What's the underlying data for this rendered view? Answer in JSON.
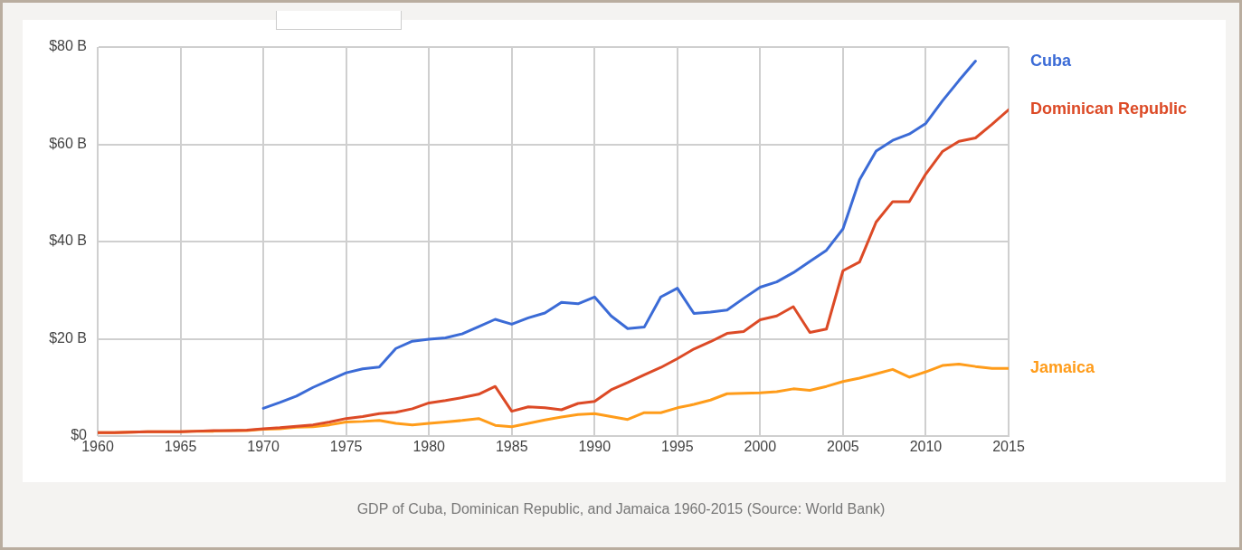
{
  "chart_data": {
    "type": "line",
    "annotations": [
      "GDP of Cuba, Dominican Republic, and Jamaica 1960-2015 (Source: World Bank)"
    ],
    "series": [
      {
        "name": "Cuba",
        "color": "#3b6bd6",
        "x": [
          1970,
          1971,
          1972,
          1973,
          1974,
          1975,
          1976,
          1977,
          1978,
          1979,
          1980,
          1981,
          1982,
          1983,
          1984,
          1985,
          1986,
          1987,
          1988,
          1989,
          1990,
          1991,
          1992,
          1993,
          1994,
          1995,
          1996,
          1997,
          1998,
          1999,
          2000,
          2001,
          2002,
          2003,
          2004,
          2005,
          2006,
          2007,
          2008,
          2009,
          2010,
          2011,
          2012,
          2013
        ],
        "values": [
          5.7,
          6.9,
          8.2,
          10,
          11.5,
          13,
          13.8,
          14.2,
          18,
          19.5,
          19.9,
          20.2,
          21,
          22.5,
          24,
          23,
          24.3,
          25.3,
          27.5,
          27.2,
          28.6,
          24.7,
          22.1,
          22.4,
          28.6,
          30.4,
          25.2,
          25.5,
          25.9,
          28.3,
          30.6,
          31.7,
          33.6,
          35.9,
          38.2,
          42.6,
          52.7,
          58.6,
          60.8,
          62.1,
          64.3,
          68.9,
          73.1,
          77.1
        ]
      },
      {
        "name": "Dominican Republic",
        "color": "#dc4a26",
        "values": [
          0.7,
          0.7,
          0.8,
          0.9,
          0.9,
          0.9,
          1.0,
          1.1,
          1.1,
          1.2,
          1.5,
          1.7,
          2.0,
          2.3,
          2.9,
          3.6,
          4.0,
          4.6,
          4.9,
          5.6,
          6.8,
          7.3,
          7.9,
          8.6,
          10.2,
          5.1,
          6.0,
          5.8,
          5.4,
          6.7,
          7.1,
          9.5,
          11.0,
          12.6,
          14.1,
          15.9,
          17.9,
          19.4,
          21.1,
          21.5,
          23.9,
          24.7,
          26.6,
          21.3,
          22.0,
          34.0,
          35.8,
          44.0,
          48.2,
          48.2,
          53.9,
          58.5,
          60.6,
          61.3,
          64.1,
          67.1
        ]
      },
      {
        "name": "Jamaica",
        "color": "#ff9c1a",
        "values": [
          0.7,
          0.7,
          0.8,
          0.9,
          0.9,
          0.9,
          1.0,
          1.0,
          1.1,
          1.1,
          1.4,
          1.5,
          1.8,
          1.9,
          2.3,
          2.9,
          3.0,
          3.2,
          2.6,
          2.3,
          2.6,
          2.9,
          3.2,
          3.6,
          2.2,
          1.9,
          2.6,
          3.3,
          3.9,
          4.4,
          4.6,
          4.0,
          3.4,
          4.8,
          4.8,
          5.8,
          6.5,
          7.4,
          8.7,
          8.8,
          8.9,
          9.1,
          9.7,
          9.4,
          10.2,
          11.2,
          11.9,
          12.8,
          13.7,
          12.1,
          13.2,
          14.5,
          14.8,
          14.3,
          13.9,
          13.9
        ]
      }
    ],
    "x": [
      1960,
      1961,
      1962,
      1963,
      1964,
      1965,
      1966,
      1967,
      1968,
      1969,
      1970,
      1971,
      1972,
      1973,
      1974,
      1975,
      1976,
      1977,
      1978,
      1979,
      1980,
      1981,
      1982,
      1983,
      1984,
      1985,
      1986,
      1987,
      1988,
      1989,
      1990,
      1991,
      1992,
      1993,
      1994,
      1995,
      1996,
      1997,
      1998,
      1999,
      2000,
      2001,
      2002,
      2003,
      2004,
      2005,
      2006,
      2007,
      2008,
      2009,
      2010,
      2011,
      2012,
      2013,
      2014,
      2015
    ],
    "xlim": [
      1960,
      2015
    ],
    "xticks": [
      1960,
      1965,
      1970,
      1975,
      1980,
      1985,
      1990,
      1995,
      2000,
      2005,
      2010,
      2015
    ],
    "ylim": [
      0,
      80
    ],
    "yticks": [
      {
        "value": 0,
        "label": "$0"
      },
      {
        "value": 20,
        "label": "$20 B"
      },
      {
        "value": 40,
        "label": "$40 B"
      },
      {
        "value": 60,
        "label": "$60 B"
      },
      {
        "value": 80,
        "label": "$80 B"
      }
    ],
    "grid": true,
    "line_style": "solid",
    "marker": "none"
  }
}
